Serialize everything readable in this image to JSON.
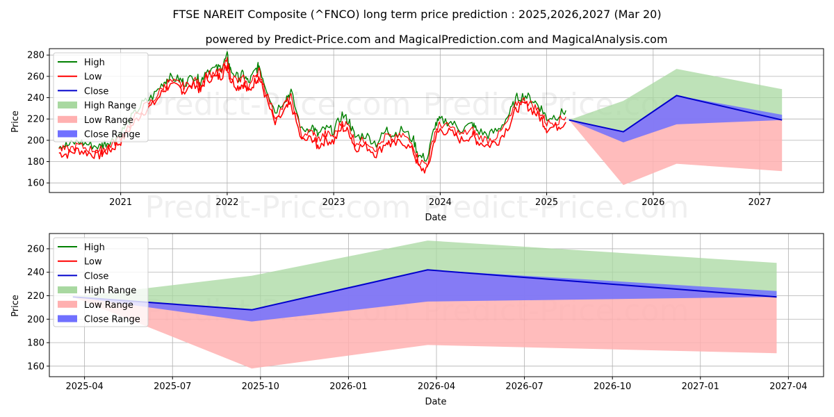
{
  "title": "FTSE NAREIT Composite (^FNCO) long term price prediction : 2025,2026,2027 (Mar 20)",
  "subtitle": "powered by Predict-Price.com and MagicalPrediction.com and MagicalAnalysis.com",
  "watermark": "Predict-Price.com",
  "colors": {
    "high": "#008000",
    "low": "#ff0000",
    "close": "#0000cc",
    "high_range": "#a8d8a0",
    "low_range": "#ffb0b0",
    "close_range": "#7070ff",
    "grid": "#b0b0b0"
  },
  "chart_data": [
    {
      "type": "line",
      "title": "FTSE NAREIT Composite (^FNCO) long term price prediction : 2025,2026,2027 (Mar 20)",
      "xlabel": "Date",
      "ylabel": "Price",
      "xlim": [
        2020.33,
        2027.6
      ],
      "ylim": [
        151,
        286
      ],
      "yticks": [
        160,
        180,
        200,
        220,
        240,
        260,
        280
      ],
      "xticks": [
        2021,
        2022,
        2023,
        2024,
        2025,
        2026,
        2027
      ],
      "xtick_labels": [
        "2021",
        "2022",
        "2023",
        "2024",
        "2025",
        "2026",
        "2027"
      ],
      "legend": [
        "High",
        "Low",
        "Close",
        "High Range",
        "Low Range",
        "Close Range"
      ],
      "legend_position": "top-left",
      "history": {
        "x": [
          2020.42,
          2020.5,
          2020.6,
          2020.7,
          2020.8,
          2020.85,
          2020.92,
          2021.0,
          2021.1,
          2021.2,
          2021.3,
          2021.4,
          2021.45,
          2021.55,
          2021.6,
          2021.7,
          2021.75,
          2021.8,
          2021.9,
          2021.95,
          2022.0,
          2022.03,
          2022.1,
          2022.15,
          2022.2,
          2022.27,
          2022.3,
          2022.35,
          2022.45,
          2022.55,
          2022.6,
          2022.7,
          2022.8,
          2022.85,
          2022.92,
          2023.0,
          2023.08,
          2023.15,
          2023.2,
          2023.3,
          2023.4,
          2023.5,
          2023.55,
          2023.65,
          2023.75,
          2023.8,
          2023.88,
          2023.95,
          2024.0,
          2024.1,
          2024.2,
          2024.3,
          2024.35,
          2024.45,
          2024.55,
          2024.65,
          2024.72,
          2024.8,
          2024.88,
          2024.95,
          2025.0,
          2025.1,
          2025.18
        ],
        "close": [
          192,
          191,
          195,
          192,
          190,
          193,
          196,
          203,
          217,
          230,
          237,
          250,
          255,
          253,
          250,
          257,
          250,
          262,
          263,
          265,
          275,
          262,
          255,
          258,
          250,
          262,
          265,
          250,
          222,
          235,
          240,
          205,
          208,
          200,
          206,
          204,
          218,
          212,
          198,
          200,
          192,
          205,
          200,
          205,
          195,
          180,
          178,
          208,
          215,
          212,
          205,
          210,
          204,
          200,
          205,
          220,
          235,
          238,
          232,
          225,
          216,
          218,
          222
        ],
        "high": [
          196,
          195,
          199,
          196,
          194,
          197,
          200,
          207,
          221,
          234,
          241,
          254,
          259,
          257,
          254,
          261,
          254,
          266,
          267,
          269,
          279,
          266,
          259,
          262,
          254,
          266,
          270,
          254,
          227,
          240,
          245,
          209,
          213,
          205,
          211,
          209,
          224,
          217,
          203,
          205,
          197,
          210,
          205,
          210,
          200,
          185,
          183,
          214,
          219,
          217,
          210,
          215,
          209,
          205,
          210,
          225,
          240,
          242,
          237,
          230,
          221,
          223,
          228
        ],
        "low": [
          188,
          187,
          191,
          188,
          186,
          189,
          192,
          199,
          213,
          226,
          233,
          246,
          251,
          249,
          246,
          253,
          246,
          258,
          259,
          261,
          270,
          257,
          250,
          253,
          245,
          257,
          259,
          244,
          215,
          229,
          234,
          199,
          202,
          194,
          200,
          199,
          212,
          207,
          193,
          195,
          187,
          199,
          195,
          199,
          189,
          174,
          172,
          202,
          210,
          207,
          200,
          205,
          199,
          195,
          200,
          215,
          230,
          234,
          227,
          220,
          211,
          213,
          217
        ]
      },
      "forecast": {
        "x": [
          2025.21,
          2025.72,
          2026.22,
          2027.21
        ],
        "close": [
          219,
          208,
          242,
          219
        ],
        "high_range_upper": [
          219,
          237,
          267,
          248
        ],
        "low_range_lower": [
          219,
          158,
          178,
          171
        ],
        "close_range_upper": [
          219,
          208,
          242,
          224
        ],
        "close_range_lower": [
          219,
          198,
          215,
          219
        ]
      }
    },
    {
      "type": "line",
      "xlabel": "Date",
      "ylabel": "Price",
      "ylim": [
        151,
        273
      ],
      "yticks": [
        160,
        180,
        200,
        220,
        240,
        260
      ],
      "xticks_months": [
        0,
        3,
        6,
        9,
        12,
        15,
        18,
        21,
        24
      ],
      "xtick_labels": [
        "2025-04",
        "2025-07",
        "2025-10",
        "2026-01",
        "2026-04",
        "2026-07",
        "2026-10",
        "2027-01",
        "2027-04"
      ],
      "xlim_months": [
        -1.2,
        25.2
      ],
      "legend": [
        "High",
        "Low",
        "Close",
        "High Range",
        "Low Range",
        "Close Range"
      ],
      "legend_position": "top-left",
      "forecast": {
        "months": [
          -0.4,
          5.7,
          11.7,
          23.6
        ],
        "close": [
          219,
          208,
          242,
          219
        ],
        "high_range_upper": [
          219,
          237,
          267,
          248
        ],
        "low_range_lower": [
          219,
          158,
          178,
          171
        ],
        "close_range_upper": [
          219,
          208,
          242,
          224
        ],
        "close_range_lower": [
          219,
          198,
          215,
          219
        ]
      }
    }
  ]
}
